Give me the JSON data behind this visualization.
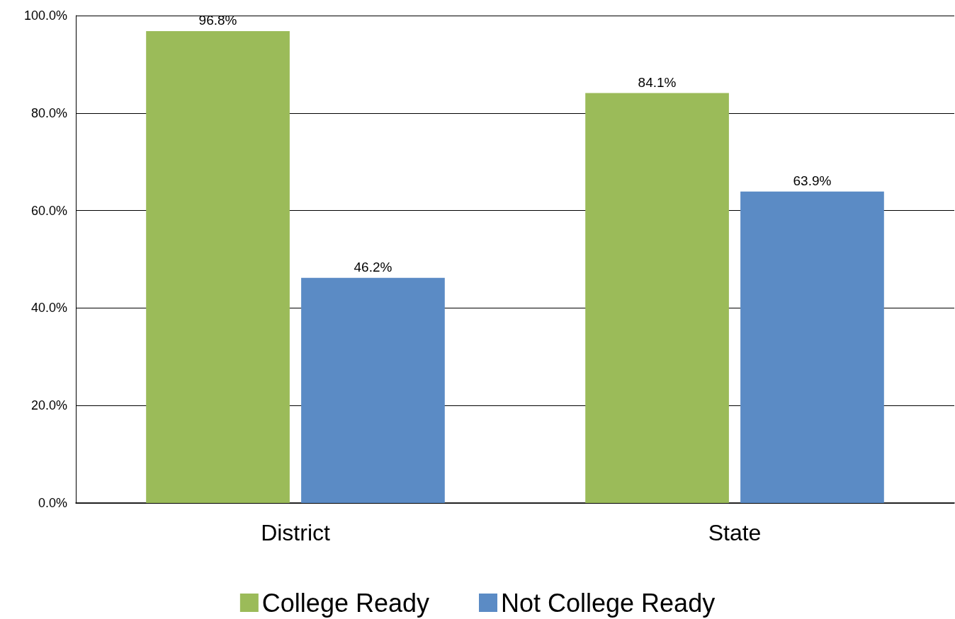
{
  "chart_data": {
    "type": "bar",
    "categories": [
      "District",
      "State"
    ],
    "series": [
      {
        "name": "College Ready",
        "color": "#9bbb59",
        "values": [
          96.8,
          84.1
        ],
        "value_labels": [
          "96.8%",
          "84.1%"
        ]
      },
      {
        "name": "Not College Ready",
        "color": "#5b8bc5",
        "values": [
          46.2,
          63.9
        ],
        "value_labels": [
          "46.2%",
          "63.9%"
        ]
      }
    ],
    "ylim": [
      0,
      100
    ],
    "yticks": [
      {
        "value": 0,
        "label": "0.0%"
      },
      {
        "value": 20,
        "label": "20.0%"
      },
      {
        "value": 40,
        "label": "40.0%"
      },
      {
        "value": 60,
        "label": "60.0%"
      },
      {
        "value": 80,
        "label": "80.0%"
      },
      {
        "value": 100,
        "label": "100.0%"
      }
    ],
    "grid": "y",
    "legend": "bottom"
  }
}
